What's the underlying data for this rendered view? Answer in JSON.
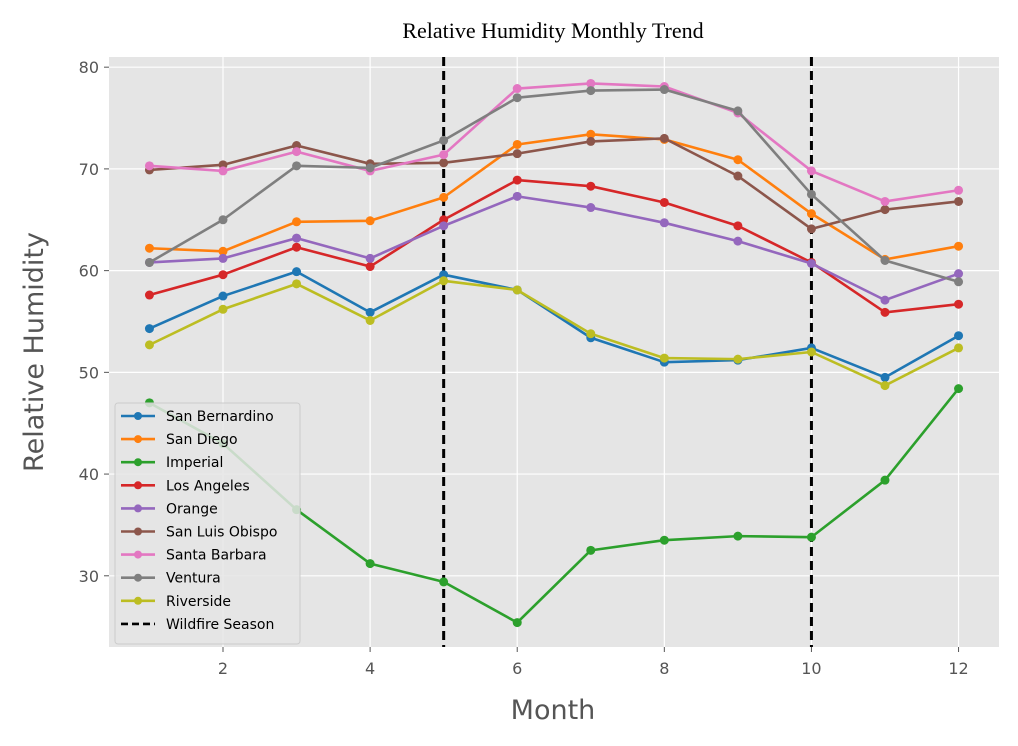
{
  "chart_data": {
    "type": "line",
    "title": "Relative Humidity Monthly Trend",
    "xlabel": "Month",
    "ylabel": "Relative Humidity",
    "xlim": [
      0.45,
      12.55
    ],
    "ylim": [
      23,
      81
    ],
    "x_ticks": [
      2,
      4,
      6,
      8,
      10,
      12
    ],
    "y_ticks": [
      30,
      40,
      50,
      60,
      70,
      80
    ],
    "grid": true,
    "legend_position": "lower-left",
    "x": [
      1,
      2,
      3,
      4,
      5,
      6,
      7,
      8,
      9,
      10,
      11,
      12
    ],
    "series": [
      {
        "name": "San Bernardino",
        "color": "#1f77b4",
        "values": [
          54.3,
          57.5,
          59.9,
          55.9,
          59.6,
          58.1,
          53.4,
          51.0,
          51.2,
          52.4,
          49.5,
          53.6
        ]
      },
      {
        "name": "San Diego",
        "color": "#ff7f0e",
        "values": [
          62.2,
          61.9,
          64.8,
          64.9,
          67.2,
          72.4,
          73.4,
          72.9,
          70.9,
          65.6,
          61.1,
          62.4
        ]
      },
      {
        "name": "Imperial",
        "color": "#2ca02c",
        "values": [
          47.0,
          43.0,
          36.5,
          31.2,
          29.4,
          25.4,
          32.5,
          33.5,
          33.9,
          33.8,
          39.4,
          48.4
        ]
      },
      {
        "name": "Los Angeles",
        "color": "#d62728",
        "values": [
          57.6,
          59.6,
          62.3,
          60.4,
          65.0,
          68.9,
          68.3,
          66.7,
          64.4,
          60.8,
          55.9,
          56.7
        ]
      },
      {
        "name": "Orange",
        "color": "#9467bd",
        "values": [
          60.8,
          61.2,
          63.2,
          61.2,
          64.4,
          67.3,
          66.2,
          64.7,
          62.9,
          60.7,
          57.1,
          59.7
        ]
      },
      {
        "name": "San Luis Obispo",
        "color": "#8c564b",
        "values": [
          69.9,
          70.4,
          72.3,
          70.5,
          70.6,
          71.5,
          72.7,
          73.0,
          69.3,
          64.1,
          66.0,
          66.8
        ]
      },
      {
        "name": "Santa Barbara",
        "color": "#e377c2",
        "values": [
          70.3,
          69.8,
          71.7,
          69.8,
          71.4,
          77.9,
          78.4,
          78.1,
          75.5,
          69.8,
          66.8,
          67.9
        ]
      },
      {
        "name": "Ventura",
        "color": "#7f7f7f",
        "values": [
          60.8,
          65.0,
          70.3,
          70.1,
          72.8,
          77.0,
          77.7,
          77.8,
          75.7,
          67.5,
          61.0,
          58.9
        ]
      },
      {
        "name": "Riverside",
        "color": "#bcbd22",
        "values": [
          52.7,
          56.2,
          58.7,
          55.1,
          59.0,
          58.1,
          53.8,
          51.4,
          51.3,
          52.0,
          48.7,
          52.4
        ]
      }
    ],
    "vlines": {
      "name": "Wildfire Season",
      "color": "#000000",
      "style": "dashed",
      "x": [
        5,
        10
      ]
    }
  }
}
